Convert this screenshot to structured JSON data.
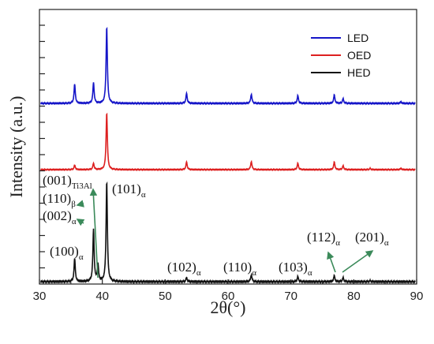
{
  "chart_data": {
    "type": "line",
    "title": "",
    "xlabel": "2θ(°)",
    "ylabel": "Intensity (a.u.)",
    "xlim": [
      30,
      90
    ],
    "x_ticks": [
      "30",
      "40",
      "50",
      "60",
      "70",
      "80",
      "90"
    ],
    "y_tick_labels": "none",
    "legend_position": "top-right",
    "series": [
      {
        "name": "LED",
        "color": "#1515c8",
        "peaks": [
          [
            35.6,
            0.25
          ],
          [
            38.6,
            0.27
          ],
          [
            40.7,
            1.0
          ],
          [
            53.4,
            0.13
          ],
          [
            63.7,
            0.12
          ],
          [
            71.1,
            0.1
          ],
          [
            76.9,
            0.11
          ],
          [
            78.3,
            0.06
          ],
          [
            87.5,
            0.02
          ]
        ]
      },
      {
        "name": "OED",
        "color": "#dd2020",
        "peaks": [
          [
            35.6,
            0.07
          ],
          [
            38.6,
            0.1
          ],
          [
            40.7,
            0.9
          ],
          [
            53.4,
            0.12
          ],
          [
            63.7,
            0.13
          ],
          [
            71.1,
            0.1
          ],
          [
            76.9,
            0.12
          ],
          [
            78.3,
            0.06
          ],
          [
            82.6,
            0.02
          ],
          [
            87.5,
            0.02
          ]
        ]
      },
      {
        "name": "HED",
        "color": "#111111",
        "peaks": [
          [
            35.6,
            0.23
          ],
          [
            38.6,
            0.52
          ],
          [
            39.3,
            0.17
          ],
          [
            40.7,
            1.0
          ],
          [
            53.4,
            0.04
          ],
          [
            63.7,
            0.07
          ],
          [
            71.1,
            0.05
          ],
          [
            76.9,
            0.06
          ],
          [
            78.3,
            0.04
          ],
          [
            82.6,
            0.01
          ]
        ]
      }
    ],
    "annotations": [
      {
        "main": "(100)",
        "sub": "α"
      },
      {
        "main": "(001)",
        "sub": "Ti3Al"
      },
      {
        "main": "(110)",
        "sub": "β"
      },
      {
        "main": "(002)",
        "sub": "α"
      },
      {
        "main": "(101)",
        "sub": "α"
      },
      {
        "main": "(102)",
        "sub": "α"
      },
      {
        "main": "(110)",
        "sub": "α"
      },
      {
        "main": "(103)",
        "sub": "α"
      },
      {
        "main": "(112)",
        "sub": "α"
      },
      {
        "main": "(201)",
        "sub": "α"
      }
    ]
  }
}
